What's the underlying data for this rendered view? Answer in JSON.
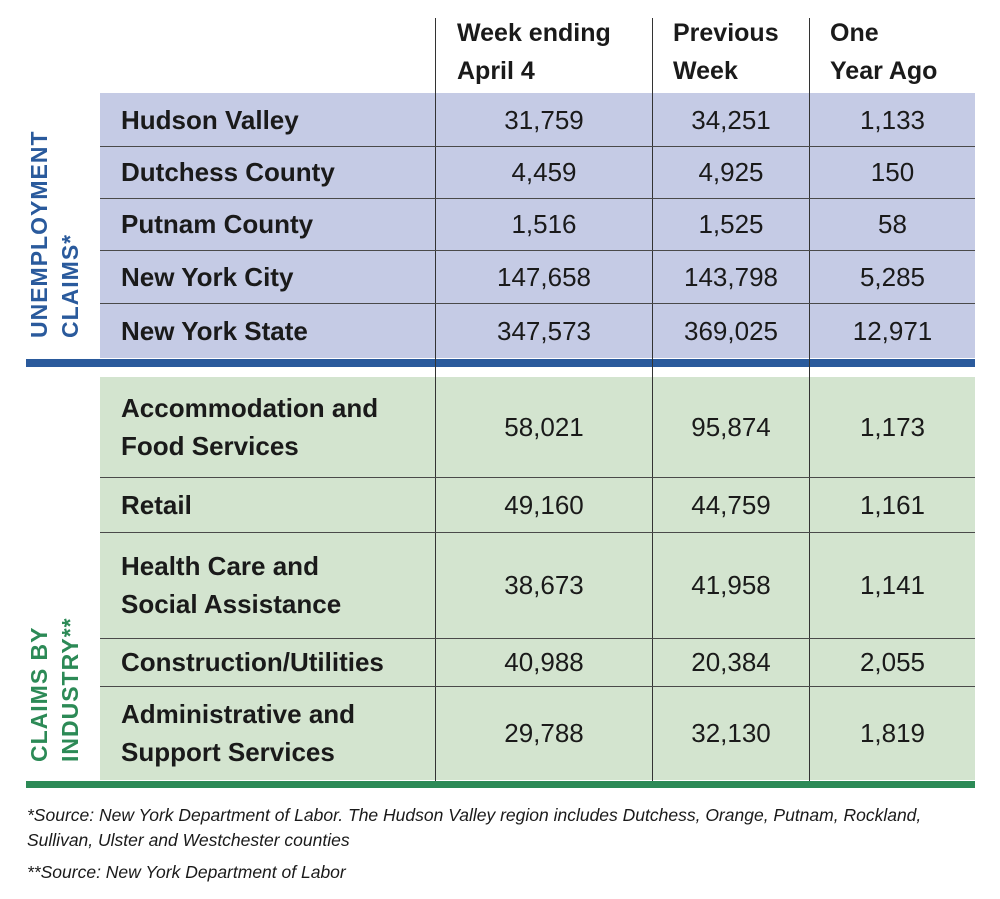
{
  "headers": {
    "col1": [
      "Week ending",
      "April 4"
    ],
    "col2": [
      "Previous",
      "Week"
    ],
    "col3": [
      "One",
      "Year Ago"
    ]
  },
  "sections": {
    "unemployment": {
      "label": [
        "UNEMPLOYMENT",
        "CLAIMS*"
      ],
      "color": "#2a5a9c",
      "band": "#c5cbe5"
    },
    "industry": {
      "label": [
        "CLAIMS BY",
        "INDUSTRY**"
      ],
      "color": "#2c8a56",
      "band": "#d3e4cf"
    }
  },
  "chart_data": {
    "type": "table",
    "columns": [
      "",
      "Week ending April 4",
      "Previous Week",
      "One Year Ago"
    ],
    "unemployment_rows": [
      {
        "label": [
          "Hudson Valley"
        ],
        "values": [
          "31,759",
          "34,251",
          "1,133"
        ]
      },
      {
        "label": [
          "Dutchess County"
        ],
        "values": [
          "4,459",
          "4,925",
          "150"
        ]
      },
      {
        "label": [
          "Putnam County"
        ],
        "values": [
          "1,516",
          "1,525",
          "58"
        ]
      },
      {
        "label": [
          "New York City"
        ],
        "values": [
          "147,658",
          "143,798",
          "5,285"
        ]
      },
      {
        "label": [
          "New York State"
        ],
        "values": [
          "347,573",
          "369,025",
          "12,971"
        ]
      }
    ],
    "industry_rows": [
      {
        "label": [
          "Accommodation and",
          "Food Services"
        ],
        "values": [
          "58,021",
          "95,874",
          "1,173"
        ]
      },
      {
        "label": [
          "Retail"
        ],
        "values": [
          "49,160",
          "44,759",
          "1,161"
        ]
      },
      {
        "label": [
          "Health Care and",
          "Social Assistance"
        ],
        "values": [
          "38,673",
          "41,958",
          "1,141"
        ]
      },
      {
        "label": [
          "Construction/Utilities"
        ],
        "values": [
          "40,988",
          "20,384",
          "2,055"
        ]
      },
      {
        "label": [
          "Administrative and",
          "Support Services"
        ],
        "values": [
          "29,788",
          "32,130",
          "1,819"
        ]
      }
    ]
  },
  "footnotes": [
    "*Source: New York Department of Labor. The Hudson Valley region includes Dutchess, Orange, Putnam, Rockland, Sullivan, Ulster and Westchester counties",
    "**Source: New York Department of Labor"
  ]
}
